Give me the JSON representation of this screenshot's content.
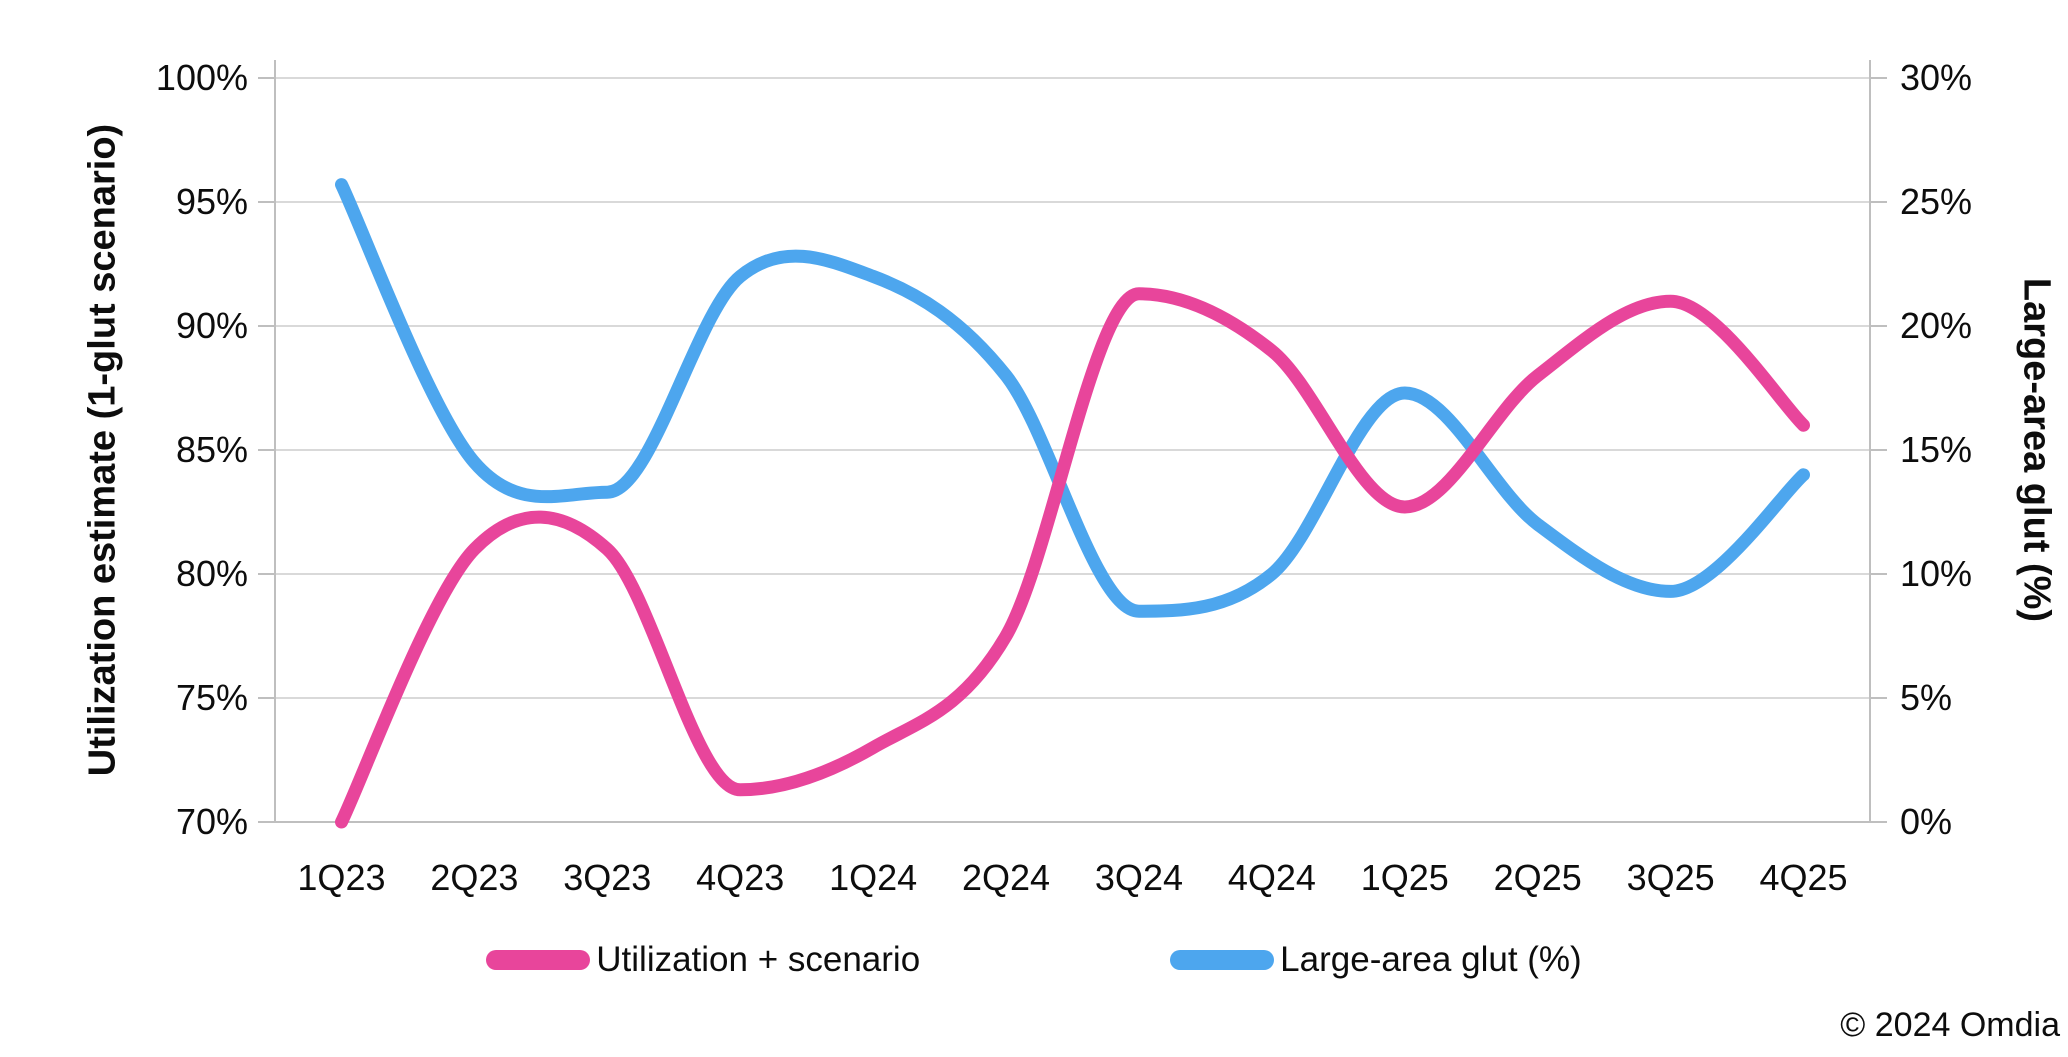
{
  "chart_data": {
    "type": "line",
    "smooth": true,
    "grid": true,
    "legend_position": "bottom",
    "categories": [
      "1Q23",
      "2Q23",
      "3Q23",
      "4Q23",
      "1Q24",
      "2Q24",
      "3Q24",
      "4Q24",
      "1Q25",
      "2Q25",
      "3Q25",
      "4Q25"
    ],
    "series": [
      {
        "name": "Utilization + scenario",
        "axis": "left",
        "color": "#E8459B",
        "values": [
          70.0,
          81.0,
          81.0,
          71.3,
          73.0,
          77.5,
          91.3,
          89.0,
          82.7,
          88.0,
          91.0,
          86.0
        ]
      },
      {
        "name": "Large-area glut (%)",
        "axis": "right",
        "color": "#4DA6EE",
        "values": [
          25.7,
          14.5,
          13.3,
          22.0,
          22.0,
          18.0,
          8.5,
          10.0,
          17.3,
          12.0,
          9.3,
          14.0
        ]
      }
    ],
    "left_axis": {
      "label": "Utilization estimate (1-glut scenario)",
      "min": 70,
      "max": 100,
      "step": 5,
      "tick_labels": [
        "100%",
        "95%",
        "90%",
        "85%",
        "80%",
        "75%",
        "70%"
      ]
    },
    "right_axis": {
      "label": "Large-area glut (%)",
      "min": 0,
      "max": 30,
      "step": 5,
      "tick_labels": [
        "30%",
        "25%",
        "20%",
        "15%",
        "10%",
        "5%",
        "0%"
      ]
    }
  },
  "footer": {
    "copyright": "© 2024 Omdia"
  },
  "colors": {
    "background": "#FFFFFF",
    "gridline": "#D9D9D9",
    "axis_line": "#BFBFBF",
    "text": "#0D0D0D"
  }
}
